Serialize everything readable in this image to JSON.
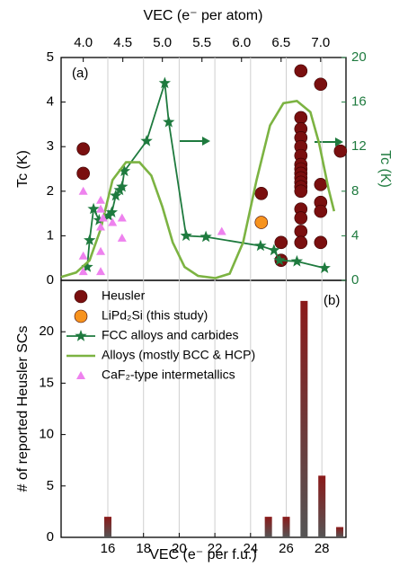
{
  "chart_data": [
    {
      "type": "scatter",
      "label": "(a)",
      "xlabel": "VEC (e⁻ per atom)",
      "ylabel": "Tc (K)",
      "y2label": "Tc (K)",
      "xlim": [
        3.72,
        7.32
      ],
      "xticks": [
        {
          "value": 4,
          "label": "4.0"
        },
        4.5,
        {
          "value": 5,
          "label": "5.0"
        },
        5.5,
        {
          "value": 6,
          "label": "6.0"
        },
        6.5,
        {
          "value": 7,
          "label": "7.0"
        }
      ],
      "ylim": [
        0,
        5
      ],
      "yticks": [
        0,
        1,
        2,
        3,
        4,
        5
      ],
      "y2lim": [
        0,
        20
      ],
      "y2ticks": [
        0,
        4,
        8,
        12,
        16,
        20
      ],
      "y2color": "#1e7a3e",
      "legend": "upper left",
      "series": [
        {
          "name": "Heusler",
          "color": "#7a0f0f",
          "marker": "circle",
          "x": [
            4.0,
            4.0,
            6.25,
            6.5,
            6.5,
            6.75,
            6.75,
            6.75,
            6.75,
            6.75,
            6.75,
            6.75,
            6.75,
            6.75,
            6.75,
            6.75,
            6.75,
            6.75,
            6.75,
            6.75,
            6.75,
            6.75,
            7.0,
            7.0,
            7.0,
            7.0,
            7.0,
            7.25
          ],
          "values": [
            2.95,
            2.4,
            1.95,
            0.85,
            0.45,
            4.7,
            3.65,
            3.4,
            3.2,
            3.0,
            2.8,
            2.6,
            2.5,
            2.4,
            2.3,
            2.2,
            2.1,
            2.0,
            1.6,
            1.4,
            1.1,
            0.85,
            4.4,
            2.15,
            1.75,
            1.55,
            0.85,
            2.9
          ]
        },
        {
          "name": "LiPd₂Si (this study)",
          "color": "#f7931e",
          "marker": "circle",
          "x": [
            6.25
          ],
          "values": [
            1.3
          ]
        },
        {
          "name": "FCC alloys and carbides",
          "color": "#1e7a3e",
          "marker": "star",
          "line": true,
          "axis": "y2",
          "x": [
            4.05,
            4.08,
            4.13,
            4.2,
            4.32,
            4.36,
            4.41,
            4.46,
            4.49,
            4.52,
            4.8,
            5.03,
            5.08,
            5.3,
            5.55,
            6.24,
            6.41,
            6.48,
            6.7,
            7.05
          ],
          "values": [
            1.2,
            3.6,
            6.4,
            5.4,
            5.8,
            6.1,
            7.6,
            8.1,
            8.4,
            9.8,
            12.5,
            17.7,
            14.2,
            4.0,
            3.9,
            3.1,
            2.7,
            1.8,
            1.7,
            1.1
          ]
        },
        {
          "name": "Alloys (mostly BCC & HCP)",
          "color": "#7cb342",
          "line": true,
          "axis": "y2",
          "x": [
            3.72,
            3.91,
            4.08,
            4.22,
            4.37,
            4.54,
            4.71,
            4.86,
            5.0,
            5.13,
            5.28,
            5.45,
            5.67,
            5.85,
            6.02,
            6.19,
            6.36,
            6.53,
            6.7,
            6.87,
            6.98,
            7.1,
            7.17
          ],
          "values": [
            0.3,
            0.7,
            1.8,
            4.6,
            9.0,
            10.6,
            10.6,
            9.4,
            6.6,
            3.4,
            1.2,
            0.4,
            0.2,
            0.6,
            3.4,
            9.0,
            13.9,
            15.9,
            16.1,
            15.1,
            12.3,
            8.2,
            6.2
          ]
        },
        {
          "name": "CaF₂-type intermetallics",
          "color": "#ee82ee",
          "marker": "triangle",
          "x": [
            4.0,
            4.0,
            4.0,
            4.22,
            4.22,
            4.22,
            4.22,
            4.22,
            4.25,
            4.37,
            4.49,
            4.49,
            5.75
          ],
          "values": [
            2.0,
            0.55,
            0.2,
            1.8,
            1.6,
            1.2,
            0.65,
            0.2,
            1.4,
            1.3,
            1.4,
            0.95,
            1.1
          ]
        }
      ]
    },
    {
      "type": "bar",
      "label": "(b)",
      "xlabel": "VEC (e⁻ per f.u.)",
      "ylabel": "# of reported Heusler SCs",
      "xlim": [
        13.38,
        29.35
      ],
      "xticks": [
        16,
        18,
        20,
        22,
        24,
        26,
        28
      ],
      "ylim": [
        0,
        25
      ],
      "yticks": [
        0,
        5,
        10,
        15,
        20
      ],
      "grid": true,
      "color": "#8b1a1a",
      "x": [
        16,
        25,
        26,
        27,
        28,
        29
      ],
      "values": [
        2,
        2,
        2,
        23,
        6,
        1
      ]
    }
  ]
}
